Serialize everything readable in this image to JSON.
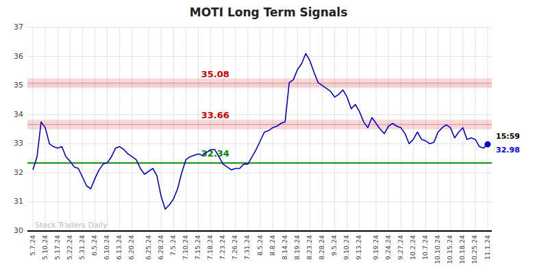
{
  "chart_data": {
    "type": "line",
    "title": "MOTI Long Term Signals",
    "color": "#0000cc",
    "grid": true,
    "ylim": [
      30,
      37
    ],
    "yticks": [
      30,
      31,
      32,
      33,
      34,
      35,
      36,
      37
    ],
    "categories": [
      "5.7.24",
      null,
      null,
      "5.10.24",
      null,
      null,
      "5.17.24",
      null,
      null,
      "5.22.24",
      null,
      null,
      "5.31.24",
      null,
      null,
      "6.5.24",
      null,
      null,
      "6.10.24",
      null,
      null,
      "6.13.24",
      null,
      null,
      "6.20.24",
      null,
      null,
      null,
      "6.25.24",
      null,
      null,
      "6.28.24",
      null,
      null,
      "7.5.24",
      null,
      null,
      "7.10.24",
      null,
      null,
      "7.15.24",
      null,
      null,
      "7.18.24",
      null,
      null,
      "7.23.24",
      null,
      null,
      "7.26.24",
      null,
      null,
      "7.31.24",
      null,
      null,
      "8.5.24",
      null,
      null,
      "8.8.24",
      null,
      null,
      "8.14.24",
      null,
      null,
      "8.19.24",
      null,
      null,
      "8.23.24",
      null,
      null,
      "8.28.24",
      null,
      null,
      "9.5.24",
      null,
      null,
      "9.10.24",
      null,
      null,
      "9.13.24",
      null,
      null,
      null,
      "9.19.24",
      null,
      null,
      "9.24.24",
      null,
      null,
      "9.27.24",
      null,
      null,
      "10.2.24",
      null,
      null,
      "10.7.24",
      null,
      null,
      "10.10.24",
      null,
      null,
      "10.15.24",
      null,
      null,
      "10.18.24",
      null,
      null,
      "10.25.24",
      null,
      null,
      "11.1.24"
    ],
    "values": [
      32.1,
      32.55,
      33.75,
      33.55,
      33.0,
      32.9,
      32.85,
      32.9,
      32.55,
      32.4,
      32.2,
      32.15,
      31.85,
      31.55,
      31.45,
      31.8,
      32.1,
      32.3,
      32.35,
      32.55,
      32.85,
      32.9,
      32.8,
      32.65,
      32.55,
      32.45,
      32.15,
      31.95,
      32.05,
      32.15,
      31.9,
      31.2,
      30.75,
      30.9,
      31.1,
      31.45,
      32.0,
      32.45,
      32.55,
      32.6,
      32.65,
      32.6,
      32.7,
      32.8,
      32.8,
      32.55,
      32.3,
      32.2,
      32.1,
      32.15,
      32.15,
      32.3,
      32.3,
      32.55,
      32.8,
      33.1,
      33.4,
      33.45,
      33.55,
      33.6,
      33.7,
      33.75,
      35.1,
      35.2,
      35.55,
      35.75,
      36.1,
      35.85,
      35.45,
      35.1,
      35.0,
      34.9,
      34.8,
      34.6,
      34.7,
      34.85,
      34.6,
      34.2,
      34.35,
      34.1,
      33.75,
      33.55,
      33.9,
      33.7,
      33.5,
      33.35,
      33.6,
      33.7,
      33.6,
      33.55,
      33.35,
      33.0,
      33.15,
      33.4,
      33.15,
      33.1,
      33.0,
      33.05,
      33.4,
      33.55,
      33.65,
      33.55,
      33.2,
      33.4,
      33.55,
      33.15,
      33.2,
      33.15,
      32.9,
      32.85,
      32.98
    ],
    "hlines": [
      {
        "value": 35.08,
        "label": "35.08",
        "color": "#cc0000",
        "band": true
      },
      {
        "value": 33.66,
        "label": "33.66",
        "color": "#cc0000",
        "band": true
      },
      {
        "value": 32.34,
        "label": "32.34",
        "color": "#008800",
        "band": false
      }
    ],
    "annotations": [
      {
        "text": "15:59",
        "color": "#000000"
      },
      {
        "text": "32.98",
        "color": "#0000ff"
      }
    ],
    "watermark": {
      "text": "Stock Traders Daily",
      "color": "#bbbbbb"
    }
  }
}
